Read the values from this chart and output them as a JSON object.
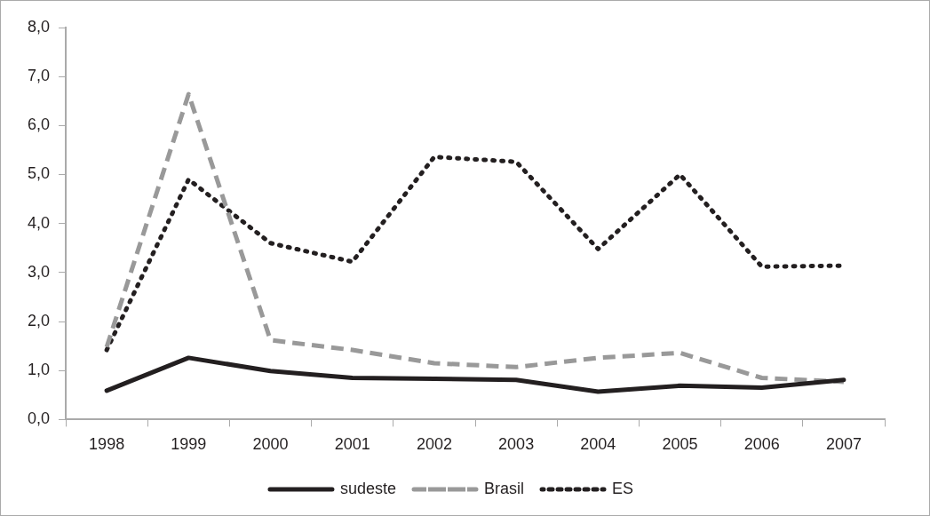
{
  "chart_data": {
    "type": "line",
    "categories": [
      "1998",
      "1999",
      "2000",
      "2001",
      "2002",
      "2003",
      "2004",
      "2005",
      "2006",
      "2007"
    ],
    "series": [
      {
        "name": "sudeste",
        "color": "#231f20",
        "line_style": "solid",
        "values": [
          0.59,
          1.26,
          0.99,
          0.85,
          0.83,
          0.81,
          0.57,
          0.69,
          0.65,
          0.81
        ]
      },
      {
        "name": "Brasil",
        "color": "#999999",
        "line_style": "dashed",
        "values": [
          1.48,
          6.64,
          1.62,
          1.42,
          1.15,
          1.07,
          1.26,
          1.36,
          0.85,
          0.77
        ]
      },
      {
        "name": "ES",
        "color": "#231f20",
        "line_style": "dotted",
        "values": [
          1.42,
          4.9,
          3.6,
          3.22,
          5.36,
          5.26,
          3.48,
          5.0,
          3.12,
          3.14
        ]
      }
    ],
    "ylim": [
      0,
      8
    ],
    "yticks": [
      {
        "value": 0,
        "label": "0,0"
      },
      {
        "value": 1,
        "label": "1,0"
      },
      {
        "value": 2,
        "label": "2,0"
      },
      {
        "value": 3,
        "label": "3,0"
      },
      {
        "value": 4,
        "label": "4,0"
      },
      {
        "value": 5,
        "label": "5,0"
      },
      {
        "value": 6,
        "label": "6,0"
      },
      {
        "value": 7,
        "label": "7,0"
      },
      {
        "value": 8,
        "label": "8,0"
      }
    ],
    "grid": false,
    "legend": "bottom",
    "marker": "none"
  }
}
